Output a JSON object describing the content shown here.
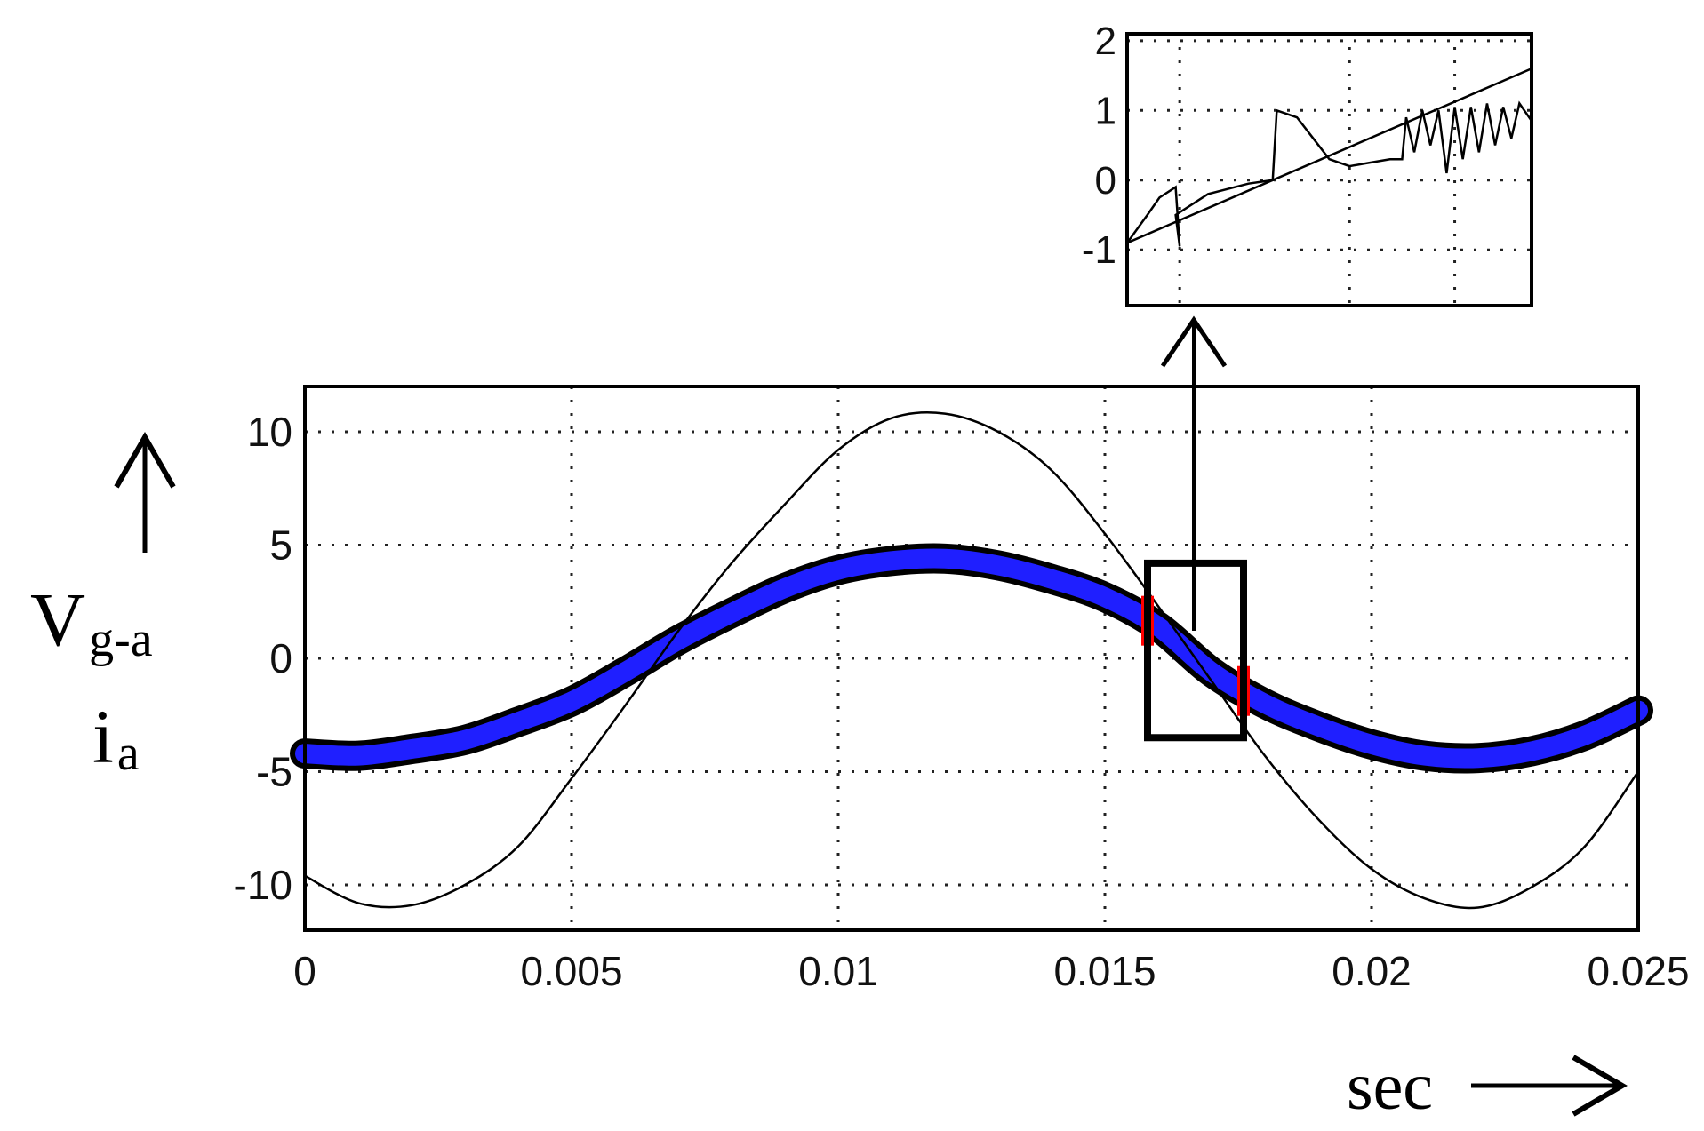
{
  "chart_data": [
    {
      "type": "line",
      "x_label": "sec",
      "y_label": {
        "line1_main": "V",
        "line1_sub": "g-a",
        "line2_main": "i",
        "line2_sub": "a"
      },
      "x_ticks": [
        "0",
        "0.005",
        "0.01",
        "0.015",
        "0.02",
        "0.025"
      ],
      "y_ticks": [
        "10",
        "5",
        "0",
        "-5",
        "-10"
      ],
      "xlim": [
        0,
        0.025
      ],
      "ylim": [
        -12,
        12
      ],
      "grid": true,
      "series": [
        {
          "key": "voltage",
          "color": "#000000",
          "x": [
            0,
            0.001,
            0.002,
            0.003,
            0.004,
            0.005,
            0.006,
            0.007,
            0.008,
            0.009,
            0.01,
            0.011,
            0.012,
            0.013,
            0.014,
            0.015,
            0.016,
            0.017,
            0.018,
            0.019,
            0.02,
            0.021,
            0.022,
            0.023,
            0.024,
            0.025
          ],
          "y": [
            -9.6,
            -10.8,
            -10.9,
            -10.0,
            -8.3,
            -5.3,
            -2.1,
            1.2,
            4.2,
            6.8,
            9.2,
            10.6,
            10.8,
            10.0,
            8.3,
            5.5,
            2.3,
            -1.0,
            -4.3,
            -7.1,
            -9.3,
            -10.6,
            -11.0,
            -10.1,
            -8.3,
            -5.0
          ]
        },
        {
          "key": "current",
          "color": "#1f1fff",
          "x": [
            0,
            0.001,
            0.002,
            0.003,
            0.004,
            0.005,
            0.006,
            0.007,
            0.008,
            0.009,
            0.01,
            0.011,
            0.012,
            0.013,
            0.014,
            0.015,
            0.016,
            0.017,
            0.018,
            0.019,
            0.02,
            0.021,
            0.022,
            0.023,
            0.024,
            0.025
          ],
          "y": [
            -4.2,
            -4.3,
            -4.0,
            -3.6,
            -2.8,
            -1.9,
            -0.6,
            0.8,
            2.0,
            3.1,
            3.9,
            4.3,
            4.4,
            4.1,
            3.5,
            2.7,
            1.4,
            -0.6,
            -2.0,
            -3.0,
            -3.8,
            -4.3,
            -4.4,
            -4.1,
            -3.4,
            -2.3
          ]
        }
      ],
      "zoom_box_x": [
        0.0158,
        0.0176
      ],
      "zoom_box_y": [
        -3.5,
        4.2
      ]
    },
    {
      "type": "line",
      "y_ticks": [
        "2",
        "1",
        "0",
        "-1"
      ],
      "ylim": [
        -1.8,
        2.1
      ],
      "grid": true,
      "series": [
        {
          "key": "voltage-inset",
          "color": "#000000",
          "x": [
            0,
            1
          ],
          "y": [
            -0.9,
            1.6
          ]
        },
        {
          "key": "current-inset",
          "color": "#000000",
          "x": [
            0.0,
            0.05,
            0.08,
            0.12,
            0.13,
            0.12,
            0.2,
            0.3,
            0.36,
            0.37,
            0.42,
            0.46,
            0.5,
            0.55,
            0.6,
            0.65,
            0.68,
            0.69,
            0.71,
            0.73,
            0.75,
            0.77,
            0.79,
            0.81,
            0.83,
            0.85,
            0.87,
            0.89,
            0.91,
            0.93,
            0.95,
            0.97,
            1.0
          ],
          "y": [
            -0.9,
            -0.5,
            -0.25,
            -0.1,
            -0.95,
            -0.5,
            -0.2,
            -0.05,
            0.0,
            1.0,
            0.9,
            0.6,
            0.3,
            0.2,
            0.25,
            0.3,
            0.3,
            0.9,
            0.4,
            1.0,
            0.5,
            1.0,
            0.1,
            1.05,
            0.3,
            1.05,
            0.4,
            1.1,
            0.5,
            1.05,
            0.6,
            1.1,
            0.85
          ]
        }
      ]
    }
  ]
}
